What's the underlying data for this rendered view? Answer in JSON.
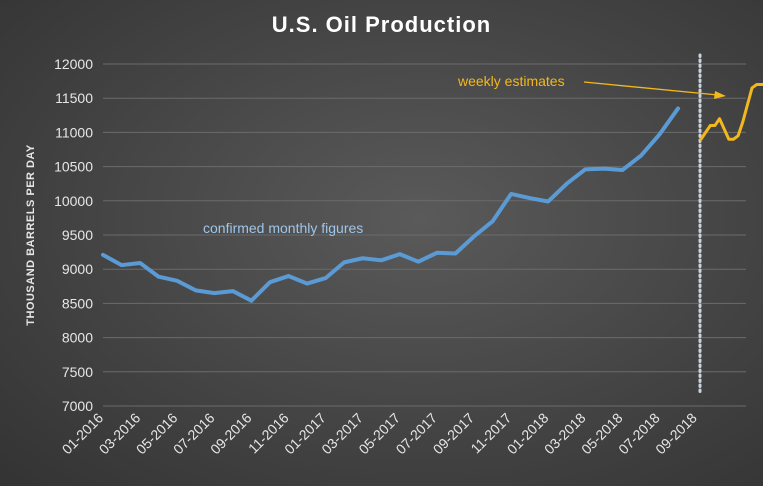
{
  "chart_data": {
    "type": "line",
    "title": "U.S. Oil Production",
    "ylabel": "THOUSAND BARRELS PER DAY",
    "xlabel": "",
    "ylim": [
      7000,
      12000
    ],
    "yticks": [
      7000,
      7500,
      8000,
      8500,
      9000,
      9500,
      10000,
      10500,
      11000,
      11500,
      12000
    ],
    "grid": true,
    "x_tick_labels": [
      "01-2016",
      "03-2016",
      "05-2016",
      "07-2016",
      "09-2016",
      "11-2016",
      "01-2017",
      "03-2017",
      "05-2017",
      "07-2017",
      "09-2017",
      "11-2017",
      "01-2018",
      "03-2018",
      "05-2018",
      "07-2018",
      "09-2018"
    ],
    "series": [
      {
        "name": "confirmed monthly figures",
        "color": "#5b9bd5",
        "x": [
          "01-2016",
          "02-2016",
          "03-2016",
          "04-2016",
          "05-2016",
          "06-2016",
          "07-2016",
          "08-2016",
          "09-2016",
          "10-2016",
          "11-2016",
          "12-2016",
          "01-2017",
          "02-2017",
          "03-2017",
          "04-2017",
          "05-2017",
          "06-2017",
          "07-2017",
          "08-2017",
          "09-2017",
          "10-2017",
          "11-2017",
          "12-2017",
          "01-2018",
          "02-2018",
          "03-2018",
          "04-2018",
          "05-2018",
          "06-2018",
          "07-2018",
          "08-2018"
        ],
        "values": [
          9210,
          9060,
          9090,
          8890,
          8830,
          8690,
          8650,
          8680,
          8540,
          8810,
          8900,
          8790,
          8870,
          9100,
          9160,
          9130,
          9220,
          9110,
          9240,
          9230,
          9480,
          9700,
          10100,
          10040,
          9990,
          10250,
          10460,
          10470,
          10450,
          10660,
          10970,
          11350
        ]
      },
      {
        "name": "weekly estimates",
        "color": "#f2b81e",
        "x": [
          0.0,
          0.25,
          0.5,
          0.75,
          1.0,
          1.25,
          1.5,
          1.75,
          2.0,
          2.25,
          2.5,
          2.75,
          3.0,
          3.25,
          3.5,
          3.75
        ],
        "x_offset_base": "08-2018",
        "values": [
          10900,
          11000,
          11100,
          11100,
          11200,
          11050,
          10900,
          10900,
          10950,
          11150,
          11400,
          11650,
          11700,
          11700,
          11700,
          11700
        ]
      }
    ],
    "annotations": {
      "monthly": "confirmed monthly figures",
      "weekly": "weekly estimates"
    },
    "divider_style": "dotted",
    "colors": {
      "monthly": "#5b9bd5",
      "weekly": "#f2b81e",
      "divider": "#c9d3dd",
      "grid": "#6b6b6b"
    }
  }
}
